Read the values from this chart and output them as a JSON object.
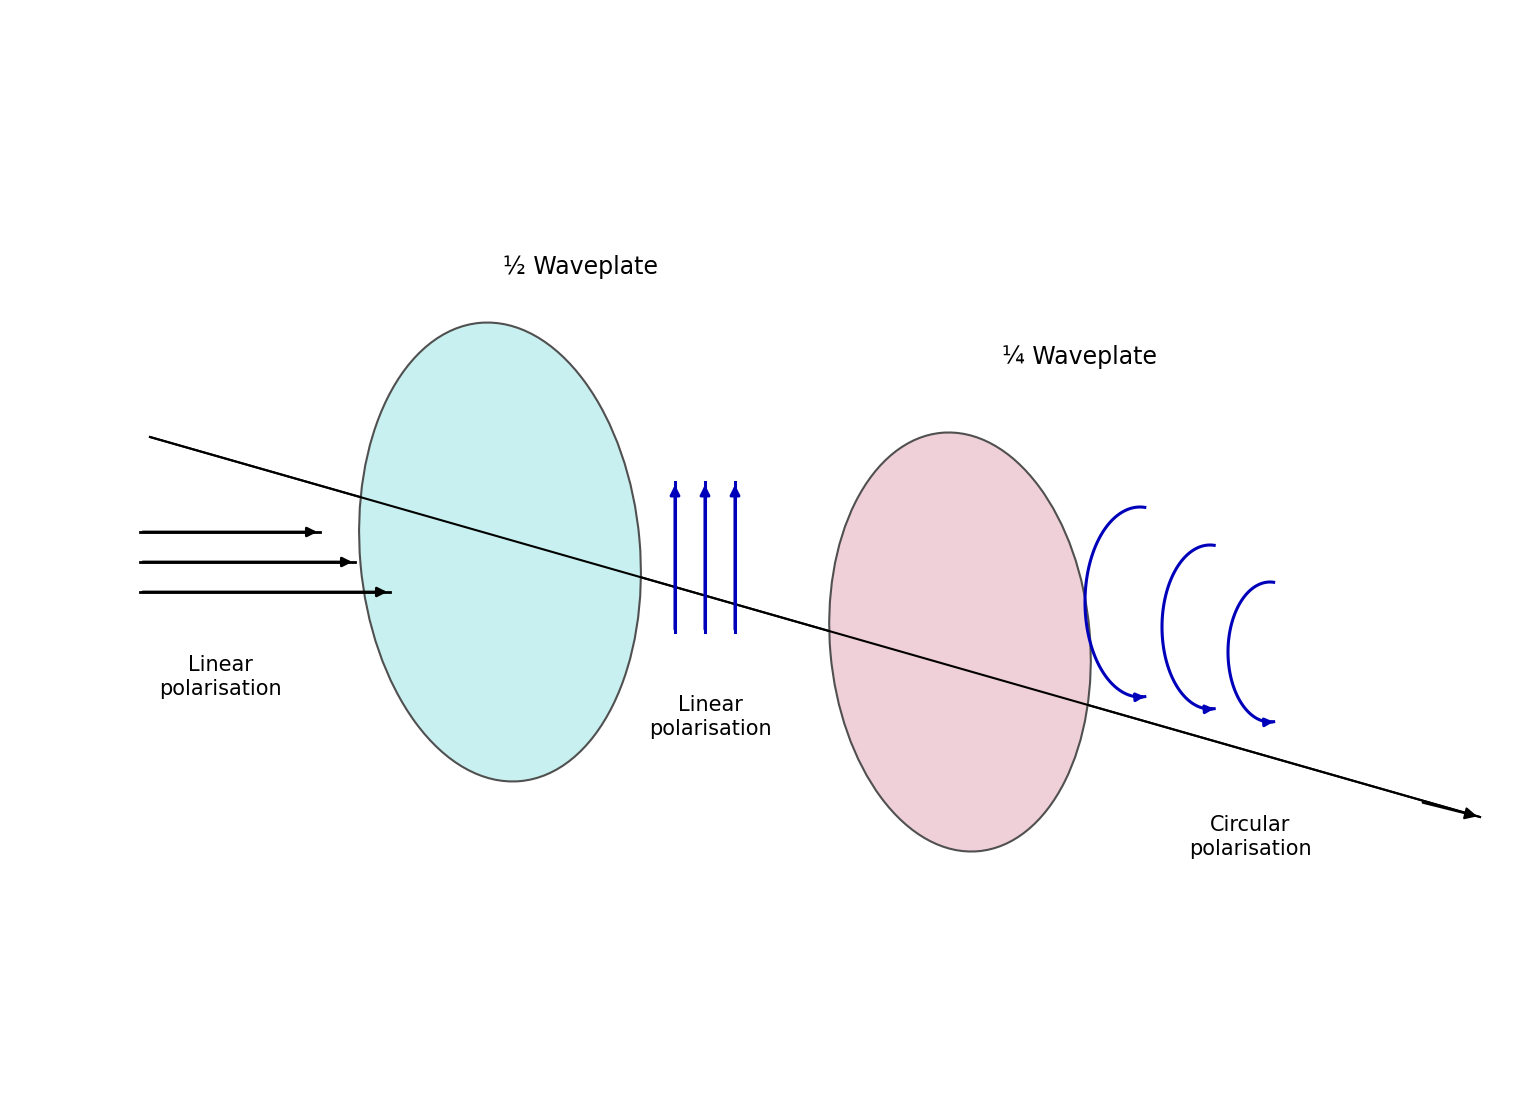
{
  "background_color": "#ffffff",
  "half_waveplate_label": "½ Waveplate",
  "quarter_waveplate_label": "¼ Waveplate",
  "linear_pol_label_left": "Linear\npolarisation",
  "linear_pol_label_middle": "Linear\npolarisation",
  "circular_pol_label": "Circular\npolarisation",
  "half_waveplate_color": "#c8f0f0",
  "quarter_waveplate_color": "#f0d0d8",
  "half_waveplate_edgecolor": "#505050",
  "quarter_waveplate_edgecolor": "#505050",
  "arrow_color": "#000000",
  "blue_color": "#0000bb",
  "font_size_label": 15,
  "font_size_waveplate": 17
}
